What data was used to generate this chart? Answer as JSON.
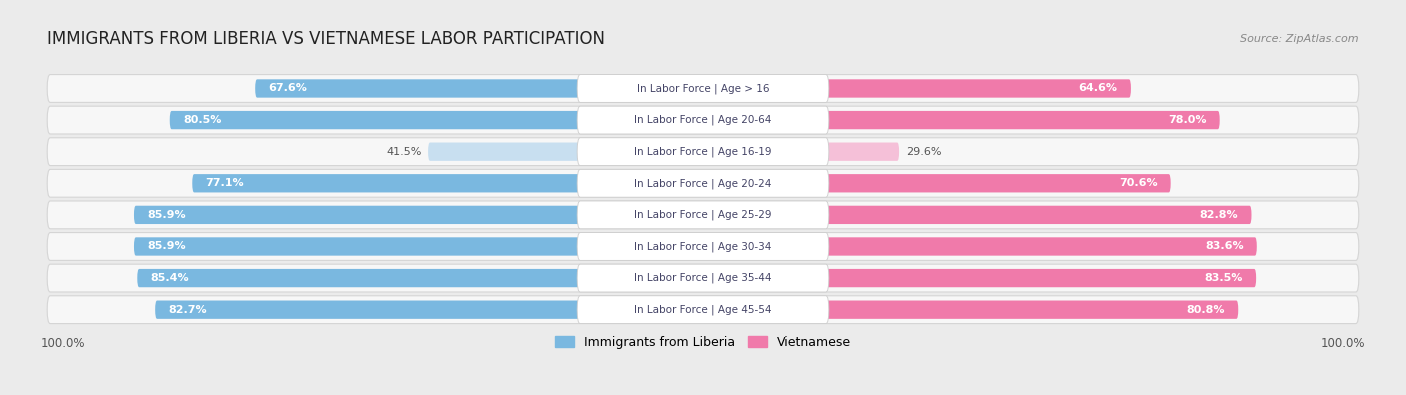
{
  "title": "IMMIGRANTS FROM LIBERIA VS VIETNAMESE LABOR PARTICIPATION",
  "source": "Source: ZipAtlas.com",
  "categories": [
    "In Labor Force | Age > 16",
    "In Labor Force | Age 20-64",
    "In Labor Force | Age 16-19",
    "In Labor Force | Age 20-24",
    "In Labor Force | Age 25-29",
    "In Labor Force | Age 30-34",
    "In Labor Force | Age 35-44",
    "In Labor Force | Age 45-54"
  ],
  "liberia_values": [
    67.6,
    80.5,
    41.5,
    77.1,
    85.9,
    85.9,
    85.4,
    82.7
  ],
  "vietnamese_values": [
    64.6,
    78.0,
    29.6,
    70.6,
    82.8,
    83.6,
    83.5,
    80.8
  ],
  "liberia_color": "#7ab8e0",
  "liberia_color_light": "#c8dff0",
  "vietnamese_color": "#f07aaa",
  "vietnamese_color_light": "#f5c0d8",
  "bg_color": "#ebebeb",
  "row_bg_color": "#f7f7f7",
  "row_border_color": "#d5d5d5",
  "center_label_color": "#444466",
  "max_value": 100.0,
  "label_fontsize": 8.0,
  "title_fontsize": 12,
  "source_fontsize": 8,
  "legend_fontsize": 9,
  "bottom_label": "100.0%"
}
